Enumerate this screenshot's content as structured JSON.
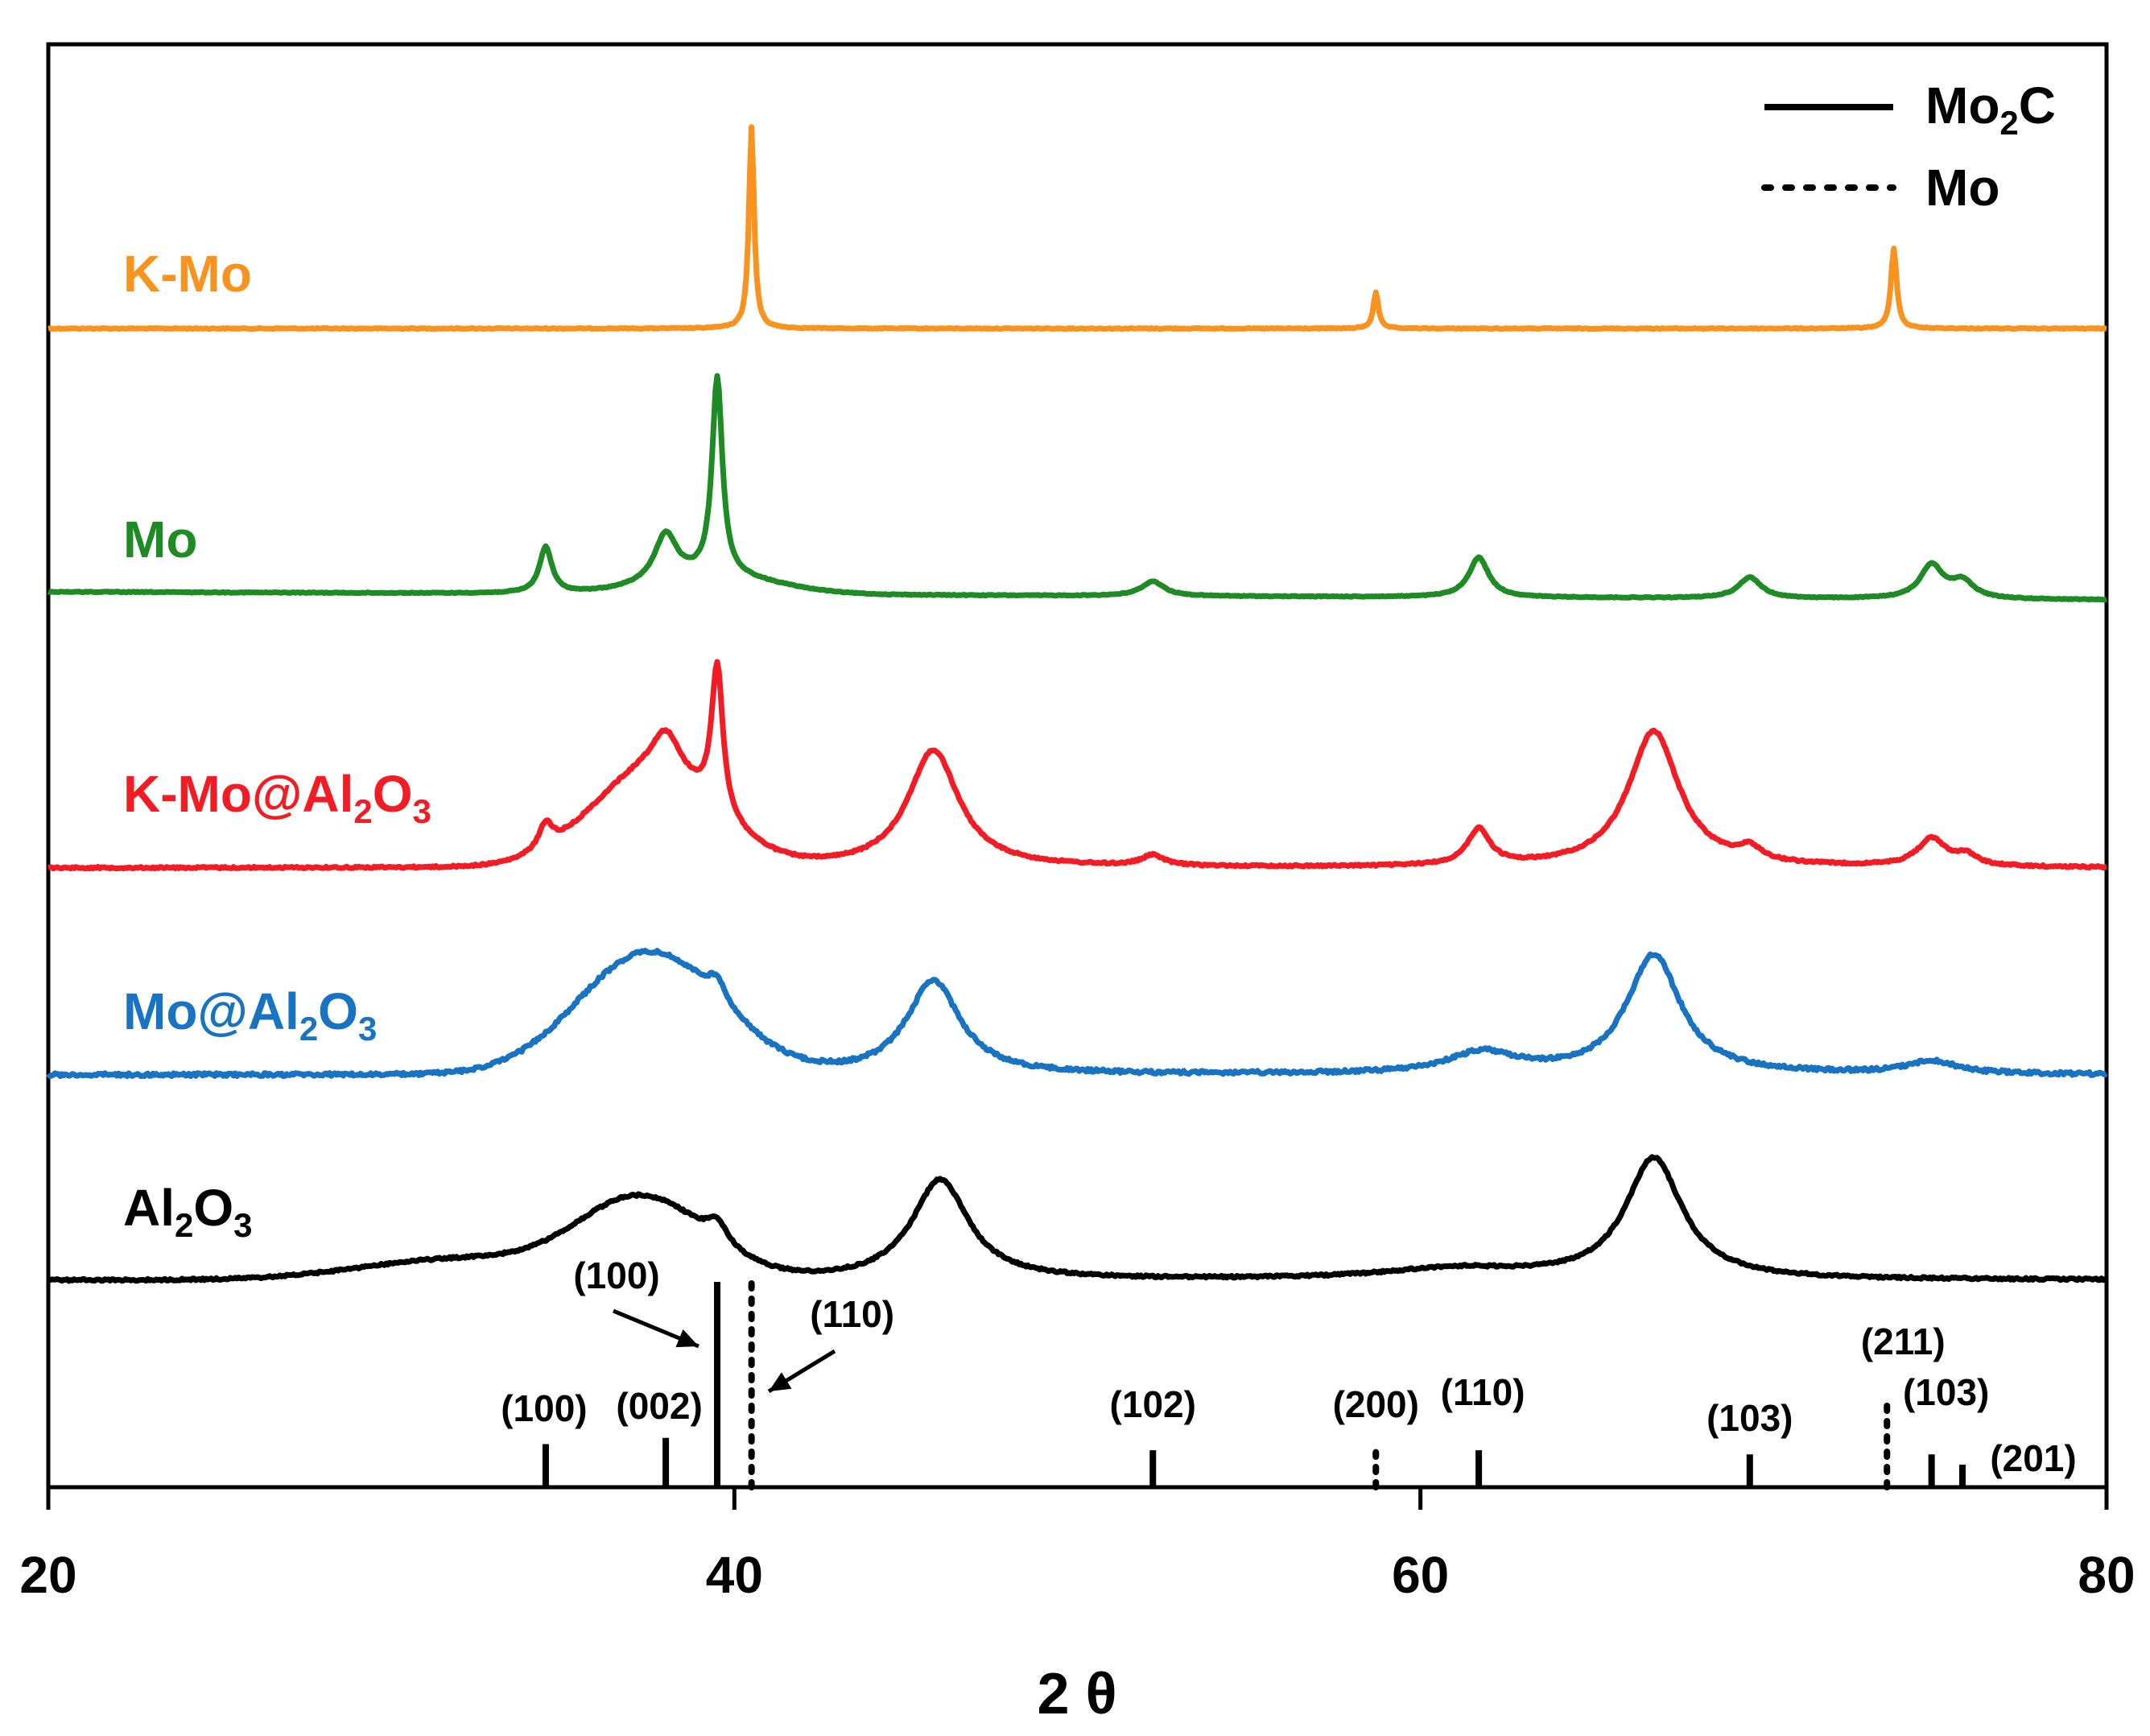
{
  "chart_data": {
    "type": "line",
    "title": "",
    "xlabel": "2 θ",
    "ylabel": "",
    "xlim": [
      20,
      80
    ],
    "xticks": [
      20,
      40,
      60,
      80
    ],
    "grid": false,
    "legend": {
      "position": "top-right",
      "entries": [
        {
          "label": "Mo2C",
          "style": "solid"
        },
        {
          "label": "Mo",
          "style": "dotted"
        }
      ]
    },
    "colors": {
      "K-Mo": "#F7931E",
      "Mo": "#1E8B24",
      "K-Mo@Al2O3": "#F21C24",
      "Mo@Al2O3": "#1874C2",
      "Al2O3": "#000000"
    },
    "series": [
      {
        "name": "K-Mo",
        "color": "#F7931E",
        "baseline": 0,
        "peaks": [
          {
            "x": 40.5,
            "height": 1.0,
            "width": 0.09
          },
          {
            "x": 58.7,
            "height": 0.18,
            "width": 0.09
          },
          {
            "x": 73.8,
            "height": 0.4,
            "width": 0.1
          }
        ],
        "hump": []
      },
      {
        "name": "Mo",
        "color": "#1E8B24",
        "baseline": 0,
        "peaks": [
          {
            "x": 34.5,
            "height": 0.22,
            "width": 0.22
          },
          {
            "x": 38.0,
            "height": 0.23,
            "width": 0.4
          },
          {
            "x": 39.5,
            "height": 0.95,
            "width": 0.18
          },
          {
            "x": 52.2,
            "height": 0.07,
            "width": 0.4
          },
          {
            "x": 61.7,
            "height": 0.19,
            "width": 0.35
          },
          {
            "x": 69.6,
            "height": 0.1,
            "width": 0.4
          },
          {
            "x": 74.9,
            "height": 0.16,
            "width": 0.4
          },
          {
            "x": 75.8,
            "height": 0.08,
            "width": 0.4
          }
        ],
        "hump": [
          {
            "x": 39.5,
            "height": 0.08,
            "width": 2.5
          }
        ]
      },
      {
        "name": "K-Mo@Al2O3",
        "color": "#F21C24",
        "baseline": 0,
        "peaks": [
          {
            "x": 34.5,
            "height": 0.12,
            "width": 0.25
          },
          {
            "x": 38.0,
            "height": 0.2,
            "width": 0.5
          },
          {
            "x": 39.5,
            "height": 0.7,
            "width": 0.2
          },
          {
            "x": 45.8,
            "height": 0.56,
            "width": 0.9
          },
          {
            "x": 52.2,
            "height": 0.05,
            "width": 0.4
          },
          {
            "x": 61.7,
            "height": 0.17,
            "width": 0.4
          },
          {
            "x": 66.8,
            "height": 0.65,
            "width": 0.9
          },
          {
            "x": 69.6,
            "height": 0.06,
            "width": 0.4
          },
          {
            "x": 74.9,
            "height": 0.13,
            "width": 0.5
          },
          {
            "x": 75.9,
            "height": 0.05,
            "width": 0.4
          }
        ],
        "hump": [
          {
            "x": 37.6,
            "height": 0.45,
            "width": 2.5
          }
        ]
      },
      {
        "name": "Mo@Al2O3",
        "color": "#1874C2",
        "baseline": 0,
        "peaks": [
          {
            "x": 39.5,
            "height": 0.1,
            "width": 0.35
          },
          {
            "x": 45.8,
            "height": 0.45,
            "width": 0.95
          },
          {
            "x": 61.8,
            "height": 0.1,
            "width": 1.2
          },
          {
            "x": 66.8,
            "height": 0.57,
            "width": 0.95
          },
          {
            "x": 74.9,
            "height": 0.06,
            "width": 0.9
          }
        ],
        "hump": [
          {
            "x": 37.5,
            "height": 0.58,
            "width": 2.9
          }
        ]
      },
      {
        "name": "Al2O3",
        "color": "#000000",
        "baseline": 0,
        "peaks": [
          {
            "x": 39.5,
            "height": 0.1,
            "width": 0.35
          },
          {
            "x": 46.0,
            "height": 0.48,
            "width": 1.0
          },
          {
            "x": 61.0,
            "height": 0.05,
            "width": 2.5
          },
          {
            "x": 66.8,
            "height": 0.58,
            "width": 1.0
          }
        ],
        "hump": [
          {
            "x": 37.3,
            "height": 0.38,
            "width": 2.6
          },
          {
            "x": 32.0,
            "height": 0.1,
            "width": 4.0
          }
        ]
      }
    ],
    "reference_lines": {
      "Mo2C": [
        {
          "x": 34.5,
          "label": "(100)",
          "height": 0.21
        },
        {
          "x": 38.0,
          "label": "(002)",
          "height": 0.24
        },
        {
          "x": 39.5,
          "label": "(100)",
          "height": 1.0
        },
        {
          "x": 52.2,
          "label": "(102)",
          "height": 0.18
        },
        {
          "x": 61.7,
          "label": "(110)",
          "height": 0.18
        },
        {
          "x": 69.6,
          "label": "(103)",
          "height": 0.16
        },
        {
          "x": 74.9,
          "label": "(103)",
          "height": 0.16
        },
        {
          "x": 75.8,
          "label": "(201)",
          "height": 0.11
        }
      ],
      "Mo": [
        {
          "x": 40.5,
          "label": "(110)",
          "height": 1.0
        },
        {
          "x": 58.7,
          "label": "(200)",
          "height": 0.17
        },
        {
          "x": 73.6,
          "label": "(211)",
          "height": 0.41
        }
      ]
    },
    "labels": {
      "KMo": "K-Mo",
      "Mo": "Mo",
      "KMoAl_main": "K-Mo@Al",
      "MoAl_main": "Mo@Al",
      "Al": "Al",
      "sub2": "2",
      "O": "O",
      "sub3": "3",
      "legend_Mo2C_main": "Mo",
      "legend_Mo2C_sub": "2",
      "legend_Mo2C_end": "C",
      "legend_Mo": "Mo"
    }
  }
}
